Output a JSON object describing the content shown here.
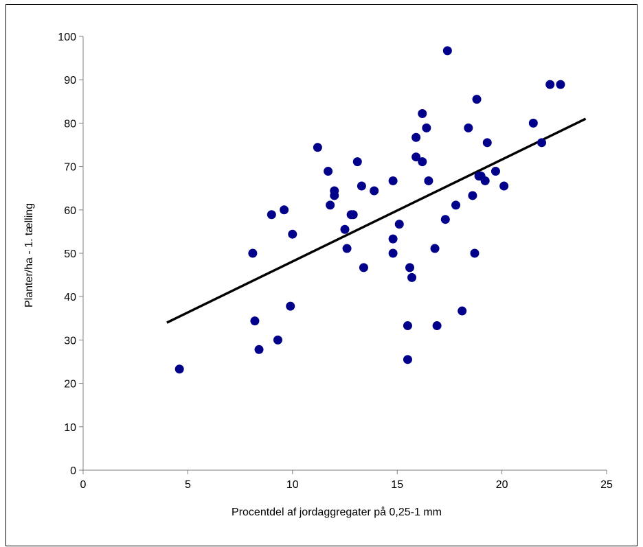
{
  "chart_data": {
    "type": "scatter",
    "title": "",
    "xlabel": "Procentdel af  jordaggregater på  0,25-1 mm",
    "ylabel": "Planter/ha - 1. tælling",
    "xlim": [
      0,
      25
    ],
    "ylim": [
      0,
      100
    ],
    "x_ticks": [
      0,
      5,
      10,
      15,
      20,
      25
    ],
    "y_ticks": [
      0,
      10,
      20,
      30,
      40,
      50,
      60,
      70,
      80,
      90,
      100
    ],
    "grid": false,
    "legend": "none",
    "colors": {
      "points": "#00008B",
      "trendline": "#000000",
      "axes": "#808080"
    },
    "series": [
      {
        "points": [
          [
            4.6,
            23.3
          ],
          [
            8.1,
            50
          ],
          [
            8.2,
            34.4
          ],
          [
            8.4,
            27.8
          ],
          [
            9.0,
            58.9
          ],
          [
            9.3,
            30
          ],
          [
            9.6,
            60
          ],
          [
            9.9,
            37.8
          ],
          [
            10.0,
            54.4
          ],
          [
            11.2,
            74.4
          ],
          [
            11.7,
            68.9
          ],
          [
            11.8,
            61.1
          ],
          [
            12.0,
            64.4
          ],
          [
            12.0,
            63.3
          ],
          [
            12.5,
            55.5
          ],
          [
            12.6,
            51.1
          ],
          [
            12.8,
            58.9
          ],
          [
            12.9,
            58.9
          ],
          [
            13.1,
            71.1
          ],
          [
            13.3,
            65.5
          ],
          [
            13.4,
            46.7
          ],
          [
            13.9,
            64.4
          ],
          [
            14.8,
            66.7
          ],
          [
            14.8,
            53.3
          ],
          [
            14.8,
            50
          ],
          [
            15.1,
            56.7
          ],
          [
            15.5,
            33.3
          ],
          [
            15.5,
            25.5
          ],
          [
            15.6,
            46.7
          ],
          [
            15.7,
            44.4
          ],
          [
            15.9,
            76.7
          ],
          [
            15.9,
            72.2
          ],
          [
            16.2,
            71.1
          ],
          [
            16.2,
            82.2
          ],
          [
            16.4,
            78.9
          ],
          [
            16.5,
            66.7
          ],
          [
            16.8,
            51.1
          ],
          [
            16.9,
            33.3
          ],
          [
            17.3,
            57.8
          ],
          [
            17.4,
            96.7
          ],
          [
            17.8,
            61.1
          ],
          [
            18.1,
            36.7
          ],
          [
            18.4,
            78.9
          ],
          [
            18.6,
            63.3
          ],
          [
            18.7,
            50
          ],
          [
            18.8,
            85.5
          ],
          [
            18.9,
            67.8
          ],
          [
            19.0,
            67.8
          ],
          [
            19.2,
            66.7
          ],
          [
            19.3,
            75.5
          ],
          [
            19.7,
            68.9
          ],
          [
            20.1,
            65.5
          ],
          [
            21.5,
            80
          ],
          [
            21.9,
            75.5
          ],
          [
            22.3,
            88.9
          ],
          [
            22.8,
            88.9
          ]
        ]
      }
    ],
    "trendline": {
      "x": [
        4.0,
        24.0
      ],
      "y": [
        34.0,
        81.0
      ]
    }
  }
}
